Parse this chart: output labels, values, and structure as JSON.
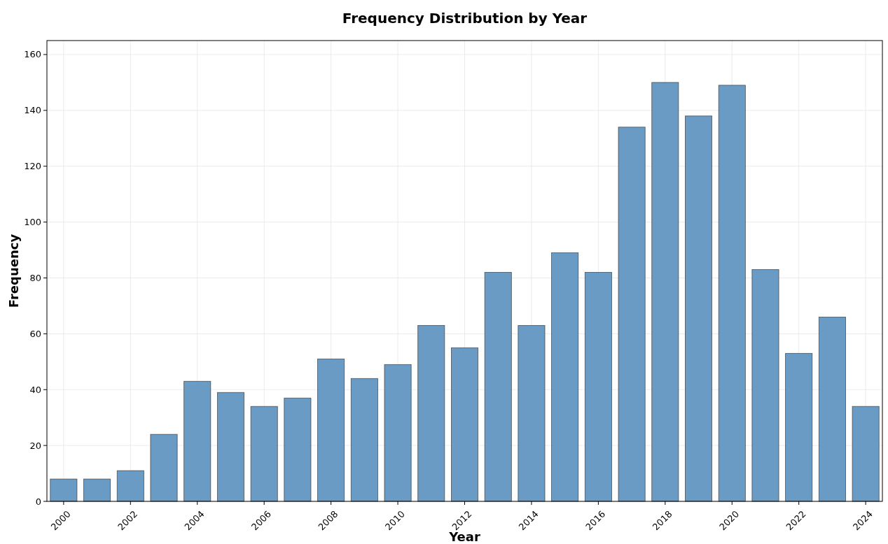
{
  "chart_data": {
    "type": "bar",
    "title": "Frequency Distribution by Year",
    "xlabel": "Year",
    "ylabel": "Frequency",
    "x": [
      2000,
      2001,
      2002,
      2003,
      2004,
      2005,
      2006,
      2007,
      2008,
      2009,
      2010,
      2011,
      2012,
      2013,
      2014,
      2015,
      2016,
      2017,
      2018,
      2019,
      2020,
      2021,
      2022,
      2023,
      2024
    ],
    "values": [
      8,
      8,
      11,
      24,
      43,
      39,
      34,
      37,
      51,
      44,
      49,
      63,
      55,
      82,
      63,
      89,
      82,
      134,
      150,
      138,
      149,
      83,
      53,
      66,
      34
    ],
    "color": "#6a9bc4",
    "xlim": [
      1999.5,
      2024.5
    ],
    "xticks": [
      2000,
      2002,
      2004,
      2006,
      2008,
      2010,
      2012,
      2014,
      2016,
      2018,
      2020,
      2022,
      2024
    ],
    "ylim": [
      0,
      165
    ],
    "yticks": [
      0,
      20,
      40,
      60,
      80,
      100,
      120,
      140,
      160
    ],
    "grid": true
  }
}
